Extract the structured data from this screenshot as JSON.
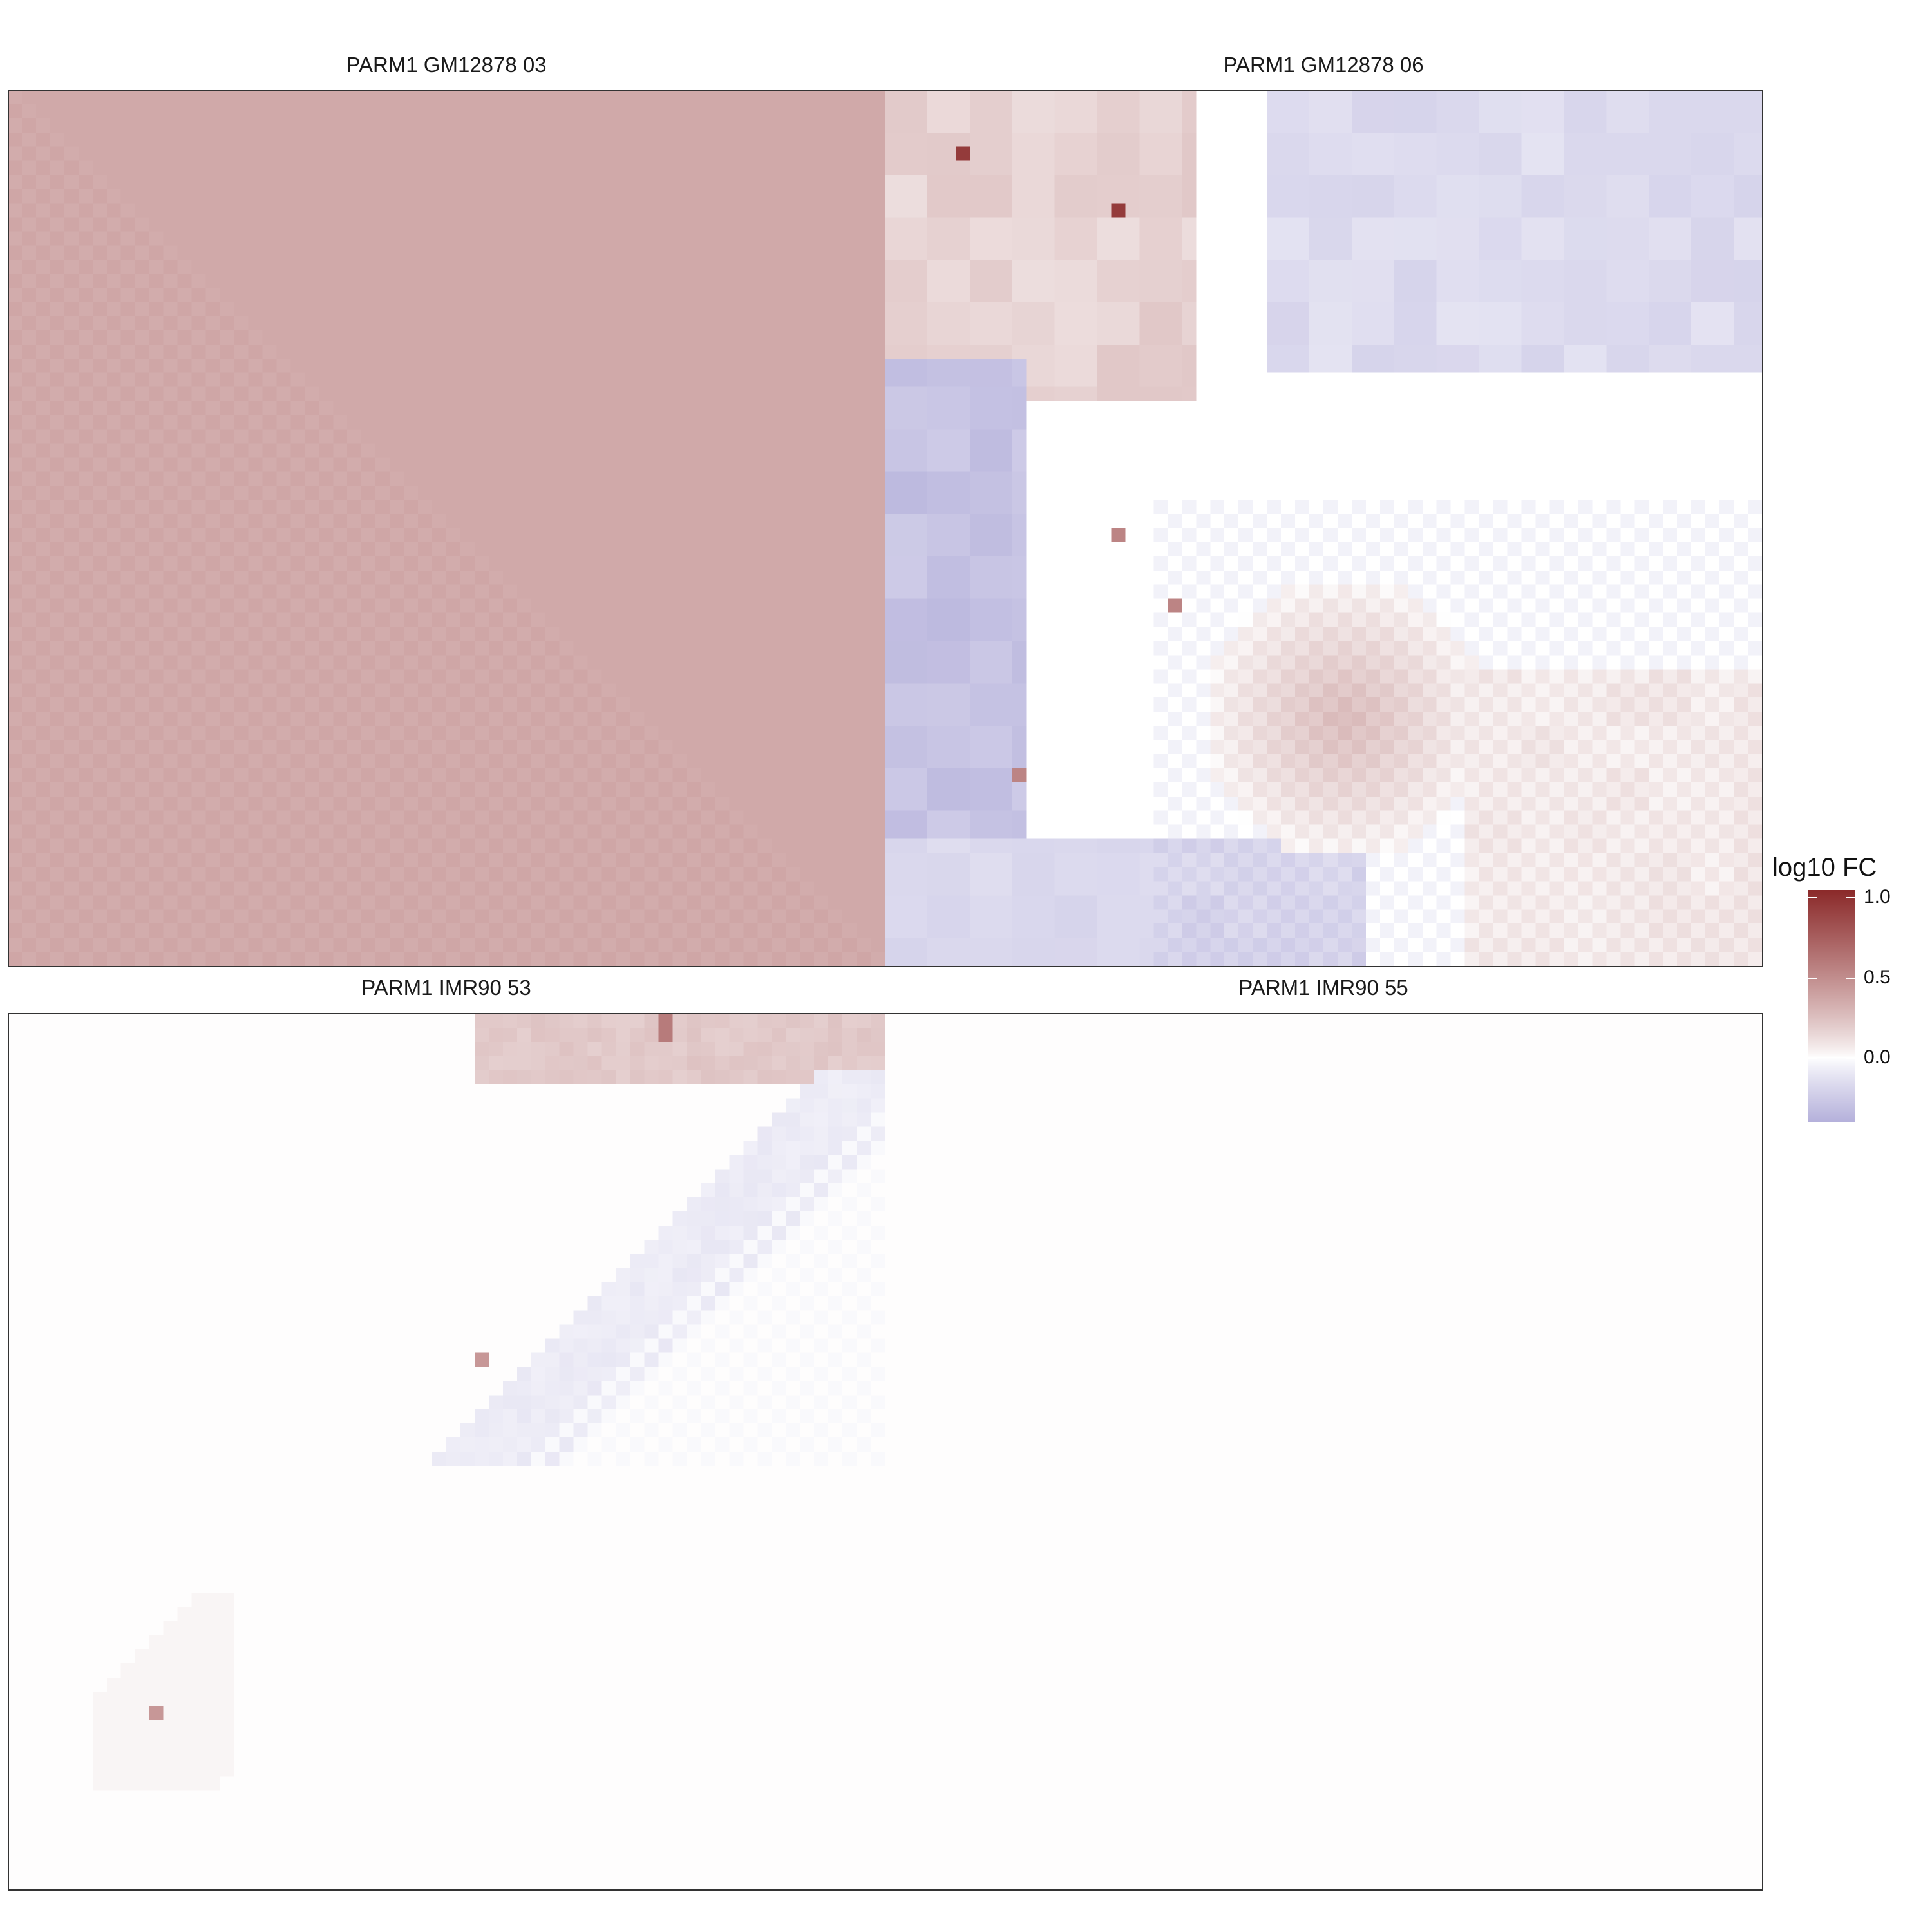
{
  "chart_data": {
    "type": "heatmap",
    "facets": [
      {
        "title": "PARM1 GM12878 03",
        "pattern": "uniform",
        "base": 0.36
      },
      {
        "title": "PARM1 GM12878 06",
        "pattern": "mixed"
      },
      {
        "title": "PARM1 IMR90 53",
        "pattern": "diagonal-band"
      },
      {
        "title": "PARM1 IMR90 55",
        "pattern": "near-zero",
        "base": 0.005
      }
    ],
    "grid_size": [
      62,
      62
    ],
    "legend": {
      "title": "log10 FC",
      "ticks": [
        {
          "value": 1.0,
          "label": "1.0"
        },
        {
          "value": 0.5,
          "label": "0.5"
        },
        {
          "value": 0.0,
          "label": "0.0"
        }
      ],
      "range": [
        -0.4,
        1.05
      ],
      "colors": {
        "low": "#b5b1db",
        "mid": "#ffffff",
        "high": "#8b2a2a"
      }
    },
    "xlabel": "",
    "ylabel": "",
    "grid": false
  }
}
